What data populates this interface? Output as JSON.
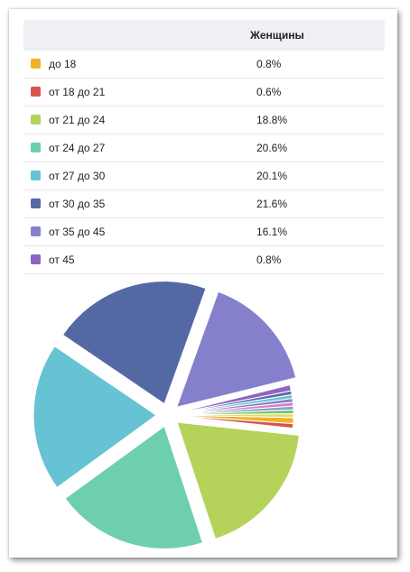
{
  "table": {
    "header": "Женщины",
    "rows": [
      {
        "label": "до 18",
        "value": "0.8%",
        "color": "#f0b323"
      },
      {
        "label": "от 18 до 21",
        "value": "0.6%",
        "color": "#d9534f"
      },
      {
        "label": "от 21 до 24",
        "value": "18.8%",
        "color": "#b5d25a"
      },
      {
        "label": "от 24 до 27",
        "value": "20.6%",
        "color": "#6ecfb0"
      },
      {
        "label": "от 27 до 30",
        "value": "20.1%",
        "color": "#66c3d3"
      },
      {
        "label": "от 30 до 35",
        "value": "21.6%",
        "color": "#5469a4"
      },
      {
        "label": "от 35 до 45",
        "value": "16.1%",
        "color": "#8580cc"
      },
      {
        "label": "от 45",
        "value": "0.8%",
        "color": "#9064c1"
      }
    ]
  },
  "chart_data": {
    "type": "pie",
    "series": [
      {
        "values": [
          0.8,
          0.6,
          18.8,
          20.6,
          20.1,
          21.6,
          16.1,
          0.8,
          0.5,
          0.5,
          0.5,
          0.5,
          0.5,
          0.5,
          0.5
        ]
      }
    ],
    "colors": [
      "#f0b323",
      "#d9534f",
      "#b5d25a",
      "#6ecfb0",
      "#66c3d3",
      "#5469a4",
      "#8580cc",
      "#9064c1",
      "#5469a4",
      "#66c3d3",
      "#8580cc",
      "#e07bb5",
      "#7aa6d6",
      "#7ac06b",
      "#d7e06a"
    ]
  }
}
